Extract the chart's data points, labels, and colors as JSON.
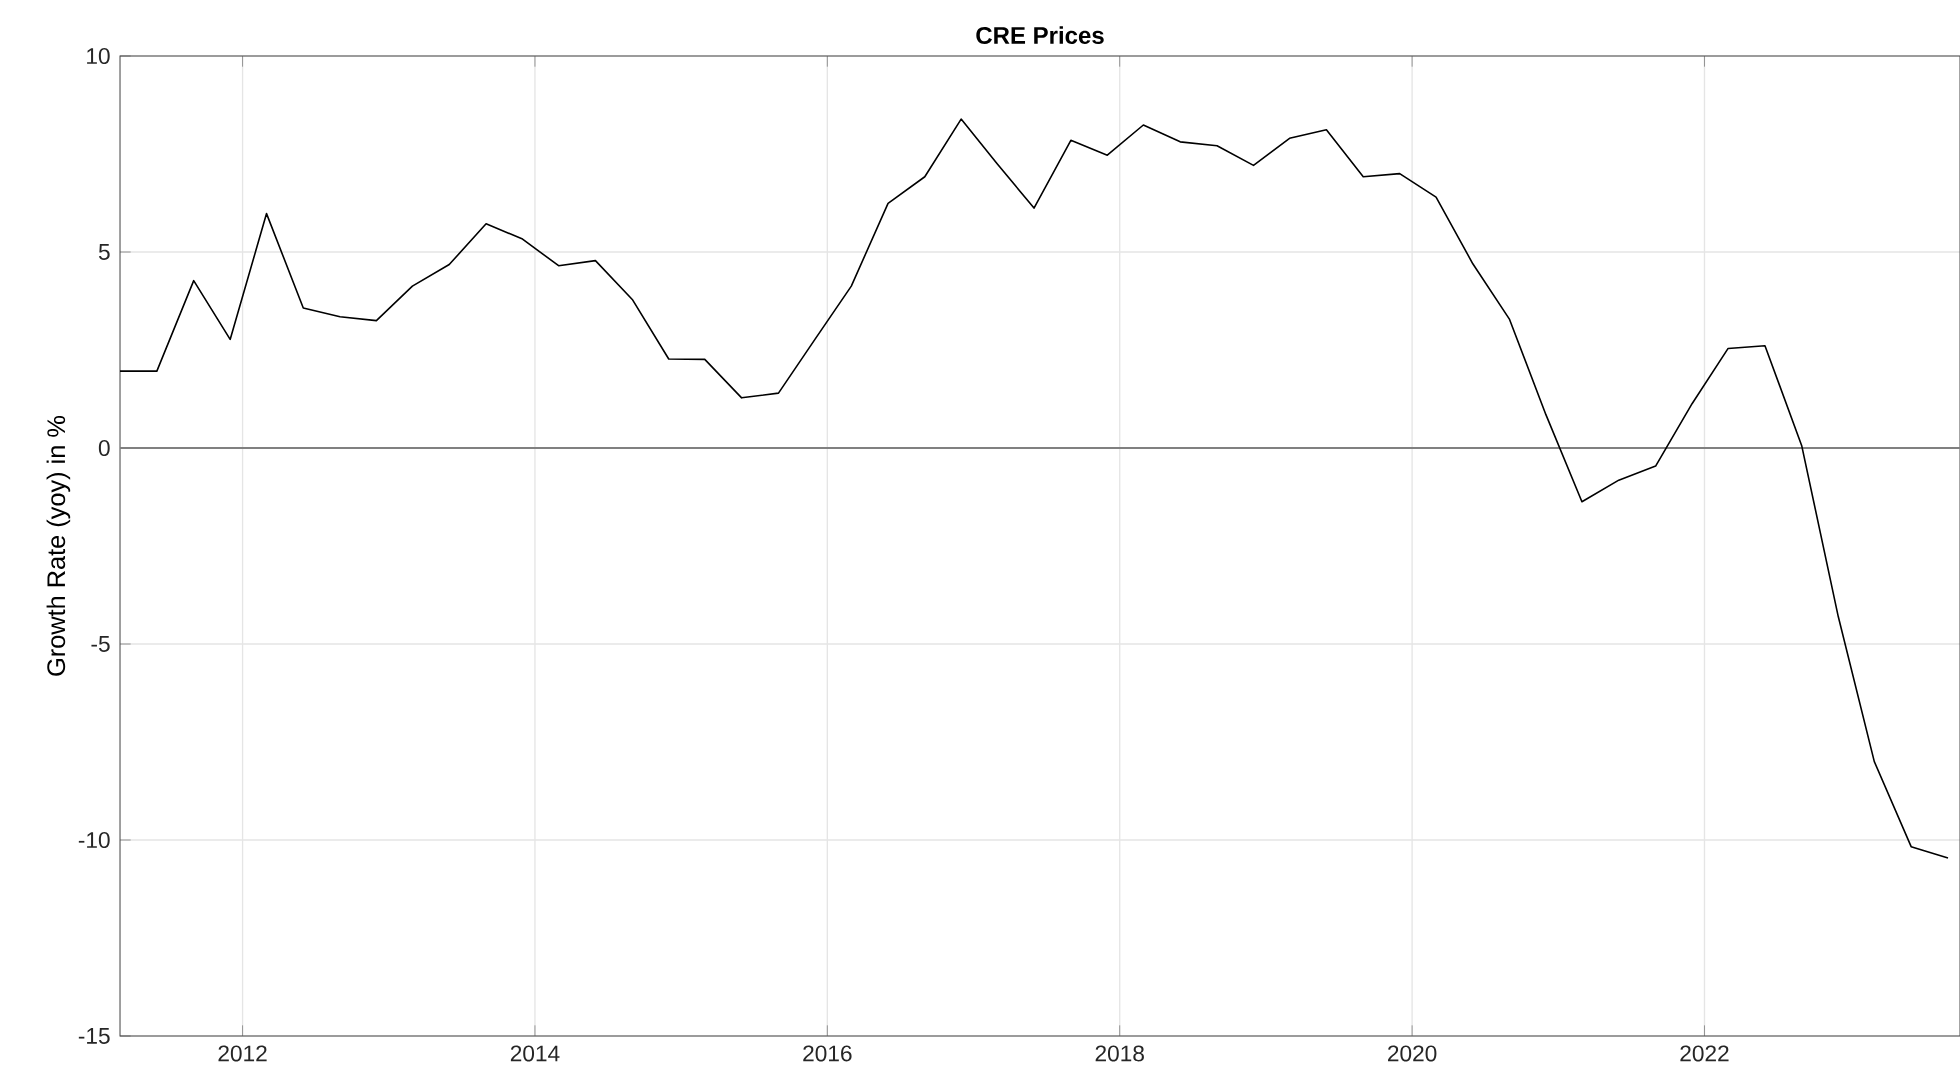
{
  "chart_data": {
    "type": "line",
    "title": "CRE Prices",
    "ylabel": "Growth Rate (yoy) in %",
    "x": [
      "2011-03",
      "2011-06",
      "2011-09",
      "2011-12",
      "2012-03",
      "2012-06",
      "2012-09",
      "2012-12",
      "2013-03",
      "2013-06",
      "2013-09",
      "2013-12",
      "2014-03",
      "2014-06",
      "2014-09",
      "2014-12",
      "2015-03",
      "2015-06",
      "2015-09",
      "2015-12",
      "2016-03",
      "2016-06",
      "2016-09",
      "2016-12",
      "2017-03",
      "2017-06",
      "2017-09",
      "2017-12",
      "2018-03",
      "2018-06",
      "2018-09",
      "2018-12",
      "2019-03",
      "2019-06",
      "2019-09",
      "2019-12",
      "2020-03",
      "2020-06",
      "2020-09",
      "2020-12",
      "2021-03",
      "2021-06",
      "2021-09",
      "2021-12",
      "2022-03",
      "2022-06",
      "2022-09",
      "2022-12",
      "2023-03",
      "2023-06",
      "2023-09"
    ],
    "series": [
      {
        "color": "#000000",
        "values": [
          1.96,
          1.96,
          4.27,
          2.77,
          5.98,
          3.57,
          3.35,
          3.25,
          4.13,
          4.68,
          5.72,
          5.33,
          4.65,
          4.78,
          3.79,
          2.27,
          2.26,
          1.28,
          1.4,
          2.77,
          4.13,
          6.24,
          6.92,
          8.39,
          7.25,
          6.12,
          7.85,
          7.47,
          8.24,
          7.81,
          7.71,
          7.21,
          7.9,
          8.12,
          6.92,
          7.0,
          6.4,
          4.7,
          3.28,
          0.85,
          -1.37,
          -0.82,
          -0.46,
          1.13,
          2.54,
          2.61,
          0.05,
          -4.3,
          -8.0,
          -10.17,
          -10.46
        ]
      }
    ],
    "xlim": [
      "2011-03",
      "2023-10"
    ],
    "ylim": [
      -15,
      10
    ],
    "xticks": [
      "2012",
      "2014",
      "2016",
      "2018",
      "2020",
      "2022"
    ],
    "yticks": [
      -15,
      -10,
      -5,
      0,
      5,
      10
    ],
    "ref_lines": [
      {
        "axis": "y",
        "value": 0,
        "color": "#808080"
      }
    ],
    "grid": true,
    "marker": "none",
    "line_style": "solid"
  }
}
